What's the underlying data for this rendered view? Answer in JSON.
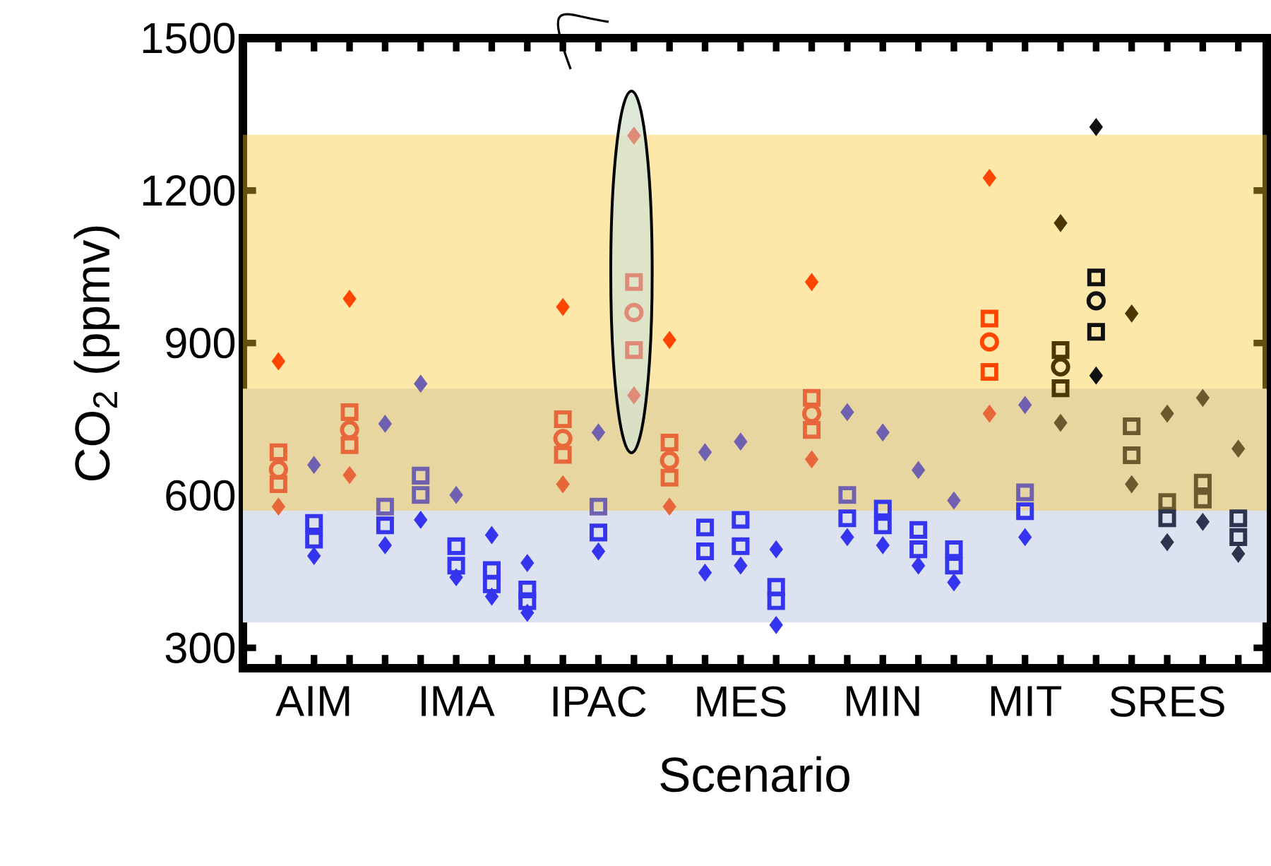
{
  "chart_data": {
    "type": "scatter",
    "xlabel": "Scenario",
    "ylabel": "CO$_{2}$ (ppmv)",
    "categories": [
      null,
      "AIM",
      null,
      null,
      null,
      "IMA",
      null,
      null,
      null,
      "IPAC",
      null,
      null,
      null,
      "MES",
      null,
      null,
      null,
      "MIN",
      null,
      null,
      null,
      "MIT",
      null,
      null,
      null,
      "SRES",
      null,
      null
    ],
    "ylim": [
      260,
      1500
    ],
    "yticks": [
      300,
      600,
      900,
      1200,
      1500
    ],
    "bands": [
      {
        "axis": "y",
        "from": 350,
        "to": 810,
        "color": "#dce2ef"
      },
      {
        "axis": "y",
        "from": 570,
        "to": 1310,
        "color": "#fac52a"
      }
    ],
    "series": [
      {
        "marker": "diamond",
        "values": [
          864,
          660,
          987,
          741,
          820,
          601,
          522,
          467,
          971,
          724,
          1308,
          906,
          685,
          706,
          494,
          1020,
          764,
          724,
          650,
          590,
          1225,
          778,
          1136,
          1325,
          958,
          761,
          792,
          692
        ],
        "colors": [
          "#ff4500",
          "#7060b0",
          "#ff4500",
          "#7060b0",
          "#7060b0",
          "#7060b0",
          "#3535f0",
          "#3535f0",
          "#ff4500",
          "#7060b0",
          "#e08a78",
          "#ff4500",
          "#7060b0",
          "#7060b0",
          "#3535f0",
          "#ff4500",
          "#7060b0",
          "#7060b0",
          "#7060b0",
          "#7060b0",
          "#ff4500",
          "#7060b0",
          "#4a3800",
          "#111111",
          "#4a3800",
          "#6b5a2e",
          "#6b5a2e",
          "#6b5a2e"
        ]
      },
      {
        "marker": "diamond",
        "values": [
          578,
          481,
          640,
          502,
          552,
          439,
          401,
          369,
          622,
          490,
          797,
          578,
          448,
          462,
          345,
          671,
          518,
          502,
          462,
          429,
          761,
          518,
          743,
          836,
          622,
          508,
          548,
          485
        ],
        "colors": [
          "#e8673a",
          "#3535f0",
          "#e8673a",
          "#3535f0",
          "#3535f0",
          "#3535f0",
          "#3535f0",
          "#3535f0",
          "#e8673a",
          "#3535f0",
          "#e08a78",
          "#e8673a",
          "#3535f0",
          "#3535f0",
          "#3535f0",
          "#e8673a",
          "#3535f0",
          "#3535f0",
          "#3535f0",
          "#3535f0",
          "#e8673a",
          "#3535f0",
          "#6b5a2e",
          "#111111",
          "#6b5a2e",
          "#2e3450",
          "#2e3450",
          "#2e3450"
        ]
      },
      {
        "marker": "square",
        "values": [
          685,
          546,
          764,
          578,
          639,
          500,
          453,
          415,
          750,
          578,
          1020,
          704,
          537,
          552,
          420,
          792,
          601,
          574,
          532,
          494,
          948,
          606,
          886,
          1029,
          736,
          587,
          625,
          555
        ],
        "colors": [
          "#e8673a",
          "#3535f0",
          "#e8673a",
          "#7060b0",
          "#7060b0",
          "#3535f0",
          "#3535f0",
          "#3535f0",
          "#e8673a",
          "#7060b0",
          "#e08a78",
          "#e8673a",
          "#3535f0",
          "#3535f0",
          "#3535f0",
          "#e8673a",
          "#7060b0",
          "#3535f0",
          "#3535f0",
          "#3535f0",
          "#ff4500",
          "#7060b0",
          "#4a3800",
          "#111111",
          "#6b5a2e",
          "#6b5a2e",
          "#6b5a2e",
          "#2e3450"
        ]
      },
      {
        "marker": "square",
        "values": [
          622,
          513,
          699,
          541,
          601,
          462,
          425,
          392,
          680,
          527,
          886,
          635,
          490,
          500,
          392,
          729,
          555,
          541,
          494,
          462,
          843,
          569,
          811,
          922,
          679,
          555,
          592,
          518
        ],
        "colors": [
          "#e8673a",
          "#3535f0",
          "#e8673a",
          "#3535f0",
          "#7060b0",
          "#3535f0",
          "#3535f0",
          "#3535f0",
          "#e8673a",
          "#3535f0",
          "#e08a78",
          "#e8673a",
          "#3535f0",
          "#3535f0",
          "#3535f0",
          "#e8673a",
          "#3535f0",
          "#3535f0",
          "#3535f0",
          "#3535f0",
          "#ff4500",
          "#3535f0",
          "#4a3800",
          "#111111",
          "#6b5a2e",
          "#2e3450",
          "#6b5a2e",
          "#2e3450"
        ]
      },
      {
        "marker": "circle",
        "values": [
          651,
          null,
          729,
          null,
          null,
          null,
          null,
          null,
          712,
          null,
          960,
          669,
          null,
          null,
          null,
          761,
          null,
          null,
          null,
          null,
          902,
          null,
          853,
          983,
          null,
          null,
          null,
          null
        ],
        "colors": [
          "#e8673a",
          null,
          "#e8673a",
          null,
          null,
          null,
          null,
          null,
          "#e8673a",
          null,
          "#e08a78",
          "#e8673a",
          null,
          null,
          null,
          "#e8673a",
          null,
          null,
          null,
          null,
          "#ff4500",
          null,
          "#4a3800",
          "#111111",
          null,
          null,
          null,
          null
        ]
      }
    ]
  }
}
